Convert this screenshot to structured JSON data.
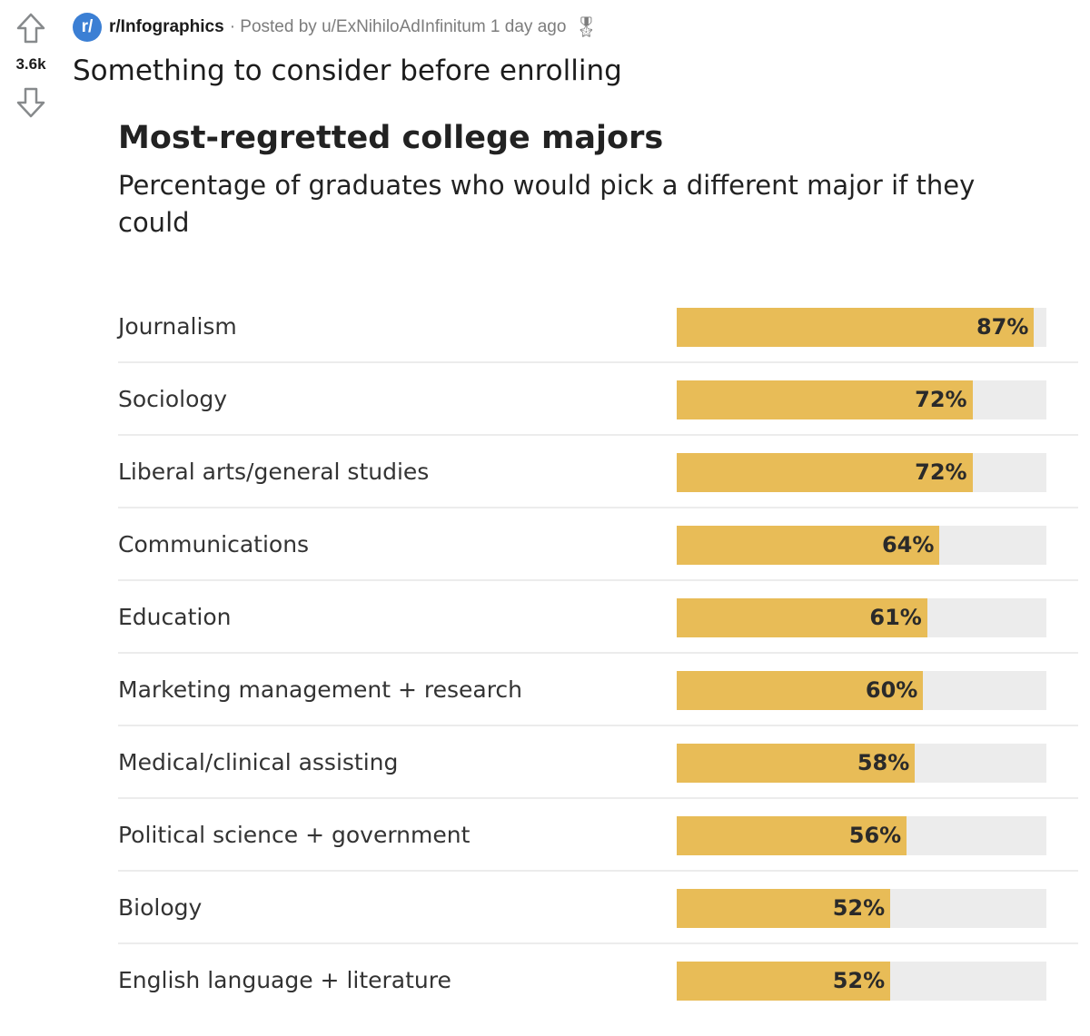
{
  "post": {
    "subreddit_icon": "r/",
    "subreddit": "r/Infographics",
    "posted_by": "· Posted by u/ExNihiloAdInfinitum 1 day ago",
    "score": "3.6k",
    "title": "Something to consider before enrolling",
    "icons": [
      "upvote-arrow-icon",
      "downvote-arrow-icon",
      "award-icon"
    ]
  },
  "chart_data": {
    "type": "bar",
    "orientation": "horizontal",
    "title": "Most-regretted college majors",
    "subtitle": "Percentage of graduates who would pick a different major if they could",
    "categories": [
      "Journalism",
      "Sociology",
      "Liberal arts/general studies",
      "Communications",
      "Education",
      "Marketing management + research",
      "Medical/clinical assisting",
      "Political science + government",
      "Biology",
      "English language + literature"
    ],
    "values": [
      87,
      72,
      72,
      64,
      61,
      60,
      58,
      56,
      52,
      52
    ],
    "data_labels": [
      "87%",
      "72%",
      "72%",
      "64%",
      "61%",
      "60%",
      "58%",
      "56%",
      "52%",
      "52%"
    ],
    "xlim": [
      0,
      90
    ],
    "grid": false,
    "colors": {
      "bar": "#e8bc57",
      "track": "#ececec"
    }
  }
}
